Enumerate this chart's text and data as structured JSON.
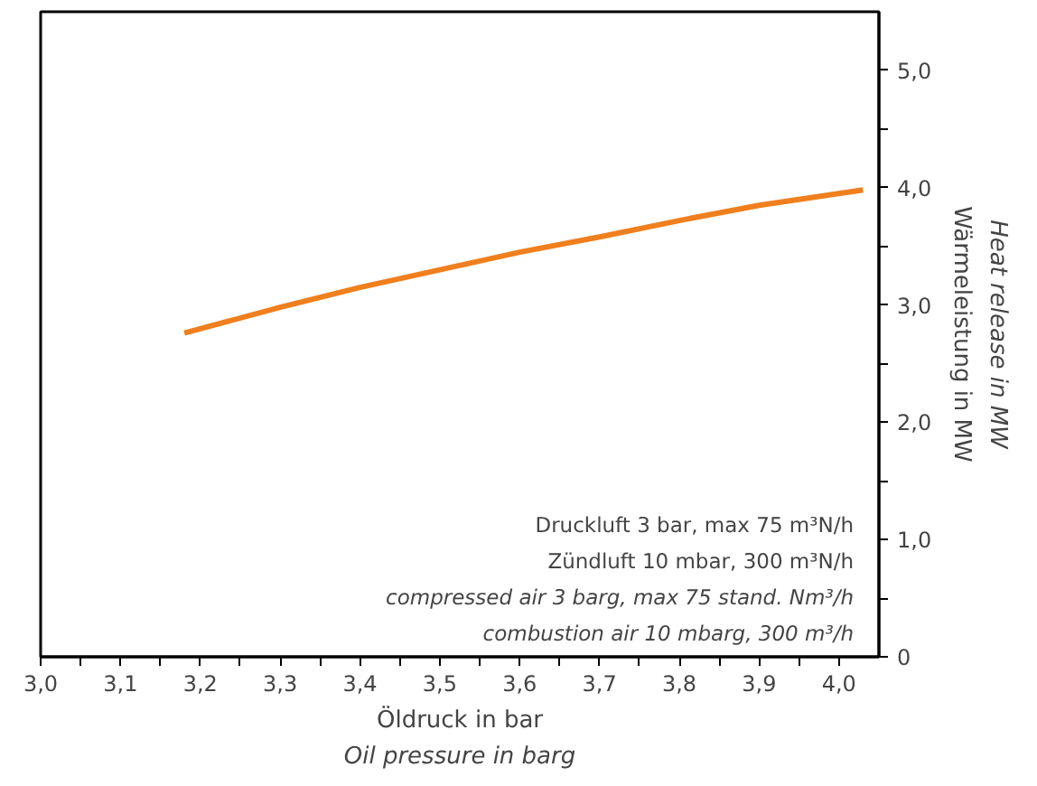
{
  "chart_data": {
    "type": "line",
    "xlabel": "Öldruck in bar\nOil pressure in barg",
    "ylabel": "Wärmeleistung in MW\nHeat release in MW",
    "annotations": [
      "Druckluft 3 bar, max 75 m³N/h\nZündluft 10 mbar, 300 m³N/h",
      "compressed air 3 barg, max 75 stand. Nm³/h\ncombustion air 10 mbarg, 300 m³/h"
    ],
    "x": [
      3.18,
      3.3,
      3.4,
      3.5,
      3.6,
      3.7,
      3.8,
      3.9,
      4.03
    ],
    "series": [
      {
        "color": "#f07f1e",
        "values": [
          2.76,
          2.98,
          3.15,
          3.3,
          3.45,
          3.58,
          3.72,
          3.85,
          3.98
        ]
      }
    ],
    "xlim": [
      3.0,
      4.05
    ],
    "xticks": [
      {
        "value": 3.0,
        "label": "3,0"
      },
      {
        "value": 3.05,
        "label": null
      },
      {
        "value": 3.1,
        "label": "3,1"
      },
      {
        "value": 3.15,
        "label": null
      },
      {
        "value": 3.2,
        "label": "3,2"
      },
      {
        "value": 3.25,
        "label": null
      },
      {
        "value": 3.3,
        "label": "3,3"
      },
      {
        "value": 3.35,
        "label": null
      },
      {
        "value": 3.4,
        "label": "3,4"
      },
      {
        "value": 3.45,
        "label": null
      },
      {
        "value": 3.5,
        "label": "3,5"
      },
      {
        "value": 3.55,
        "label": null
      },
      {
        "value": 3.6,
        "label": "3,6"
      },
      {
        "value": 3.65,
        "label": null
      },
      {
        "value": 3.7,
        "label": "3,7"
      },
      {
        "value": 3.75,
        "label": null
      },
      {
        "value": 3.8,
        "label": "3,8"
      },
      {
        "value": 3.85,
        "label": null
      },
      {
        "value": 3.9,
        "label": "3,9"
      },
      {
        "value": 3.95,
        "label": null
      },
      {
        "value": 4.0,
        "label": "4,0"
      }
    ],
    "ylim": [
      0,
      5.5
    ],
    "yticks": [
      0,
      {
        "value": 0.5,
        "label": null
      },
      {
        "value": 1.0,
        "label": "1,0"
      },
      {
        "value": 1.5,
        "label": null
      },
      {
        "value": 2.0,
        "label": "2,0"
      },
      {
        "value": 2.5,
        "label": null
      },
      {
        "value": 3.0,
        "label": "3,0"
      },
      {
        "value": 3.5,
        "label": null
      },
      {
        "value": 4.0,
        "label": "4,0"
      },
      {
        "value": 4.5,
        "label": null
      },
      {
        "value": 5.0,
        "label": "5,0"
      }
    ],
    "grid": false,
    "marker": "none",
    "line_style": "solid"
  }
}
